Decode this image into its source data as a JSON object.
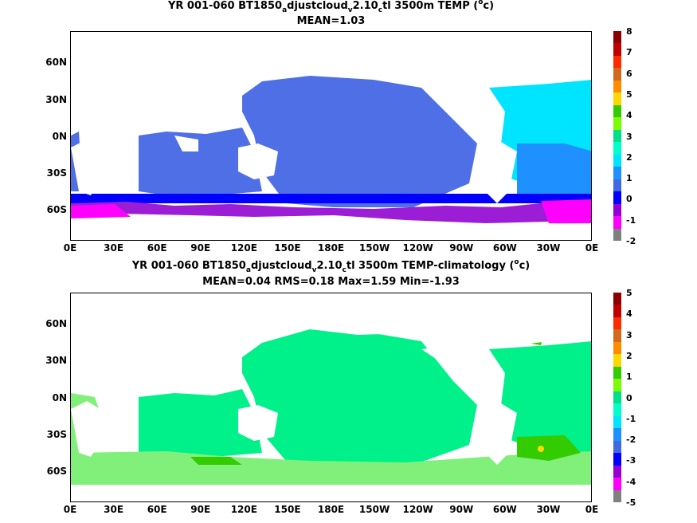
{
  "panel1": {
    "title_main": "YR 001-060 BT1850",
    "title_s1": "a",
    "title_m2": "djustcloud",
    "title_s2": "v",
    "title_m3": "2.10",
    "title_s3": "c",
    "title_m4": "tl 3500m TEMP (",
    "title_sup": "o",
    "title_m5": "c)",
    "subtitle": "MEAN=1.03",
    "colorbar_labels": [
      "8",
      "7",
      "6",
      "5",
      "4",
      "3",
      "2",
      "1",
      "0",
      "-1",
      "-2"
    ]
  },
  "panel2": {
    "title_main": "YR 001-060 BT1850",
    "title_s1": "a",
    "title_m2": "djustcloud",
    "title_s2": "v",
    "title_m3": "2.10",
    "title_s3": "c",
    "title_m4": "tl 3500m TEMP-climatology (",
    "title_sup": "o",
    "title_m5": "c)",
    "subtitle": "MEAN=0.04   RMS=0.18   Max=1.59   Min=-1.93",
    "colorbar_labels": [
      "5",
      "4",
      "3",
      "2",
      "1",
      "0",
      "-1",
      "-2",
      "-3",
      "-4",
      "-5"
    ]
  },
  "lat_labels": [
    "60N",
    "30N",
    "0N",
    "30S",
    "60S"
  ],
  "lon_labels": [
    "0E",
    "30E",
    "60E",
    "90E",
    "120E",
    "150E",
    "180E",
    "150W",
    "120W",
    "90W",
    "60W",
    "30W",
    "0E"
  ],
  "colors": {
    "colorbar": [
      "#8b0000",
      "#c00000",
      "#ff2a00",
      "#d2691e",
      "#ff8c00",
      "#ffd700",
      "#33cc00",
      "#7cfc00",
      "#00e08a",
      "#00ffcc",
      "#00e5ff",
      "#1e90ff",
      "#4169e1",
      "#0000ff",
      "#9400d3",
      "#ff00ff",
      "#808080"
    ],
    "panel1_ocean": "#4f6fe6",
    "panel1_atlantic": "#00e5ff",
    "panel1_south": "#0000ff",
    "panel1_purple": "#9b1ed6",
    "panel1_magenta": "#ff00ff",
    "panel2_ocean": "#00f08a",
    "panel2_light": "#80f07a",
    "panel2_green": "#33cc00"
  }
}
